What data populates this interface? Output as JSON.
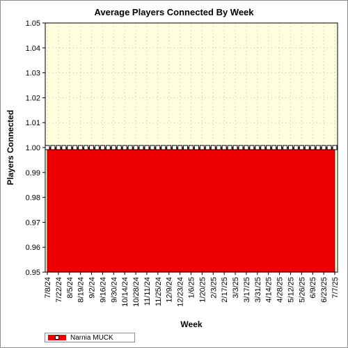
{
  "chart_data": {
    "type": "area",
    "title": "Average Players Connected By Week",
    "xlabel": "Week",
    "ylabel": "Players Connected",
    "ylim": [
      0.95,
      1.05
    ],
    "y_ticks": [
      "0.95",
      "0.96",
      "0.97",
      "0.98",
      "0.99",
      "1.00",
      "1.01",
      "1.02",
      "1.03",
      "1.04",
      "1.05"
    ],
    "x_tick_labels": [
      "7/8/24",
      "7/22/24",
      "8/5/24",
      "8/19/24",
      "9/2/24",
      "9/16/24",
      "9/30/24",
      "10/14/24",
      "10/28/24",
      "11/11/24",
      "11/25/24",
      "12/9/24",
      "12/23/24",
      "1/6/25",
      "1/20/25",
      "2/3/25",
      "2/17/25",
      "3/3/25",
      "3/17/25",
      "3/31/25",
      "4/14/25",
      "4/28/25",
      "5/12/25",
      "5/26/25",
      "6/9/25",
      "6/23/25",
      "7/7/25"
    ],
    "series": [
      {
        "name": "Narnia MUCK",
        "color": "#ee0000",
        "x": [
          "7/8/24",
          "7/15/24",
          "7/22/24",
          "7/29/24",
          "8/5/24",
          "8/12/24",
          "8/19/24",
          "8/26/24",
          "9/2/24",
          "9/9/24",
          "9/16/24",
          "9/23/24",
          "9/30/24",
          "10/7/24",
          "10/14/24",
          "10/21/24",
          "10/28/24",
          "11/4/24",
          "11/11/24",
          "11/18/24",
          "11/25/24",
          "12/2/24",
          "12/9/24",
          "12/16/24",
          "12/23/24",
          "12/30/24",
          "1/6/25",
          "1/13/25",
          "1/20/25",
          "1/27/25",
          "2/3/25",
          "2/10/25",
          "2/17/25",
          "2/24/25",
          "3/3/25",
          "3/10/25",
          "3/17/25",
          "3/24/25",
          "3/31/25",
          "4/7/25",
          "4/14/25",
          "4/21/25",
          "4/28/25",
          "5/5/25",
          "5/12/25",
          "5/19/25",
          "5/26/25",
          "6/2/25",
          "6/9/25",
          "6/16/25",
          "6/23/25",
          "6/30/25",
          "7/7/25"
        ],
        "values": [
          1,
          1,
          1,
          1,
          1,
          1,
          1,
          1,
          1,
          1,
          1,
          1,
          1,
          1,
          1,
          1,
          1,
          1,
          1,
          1,
          1,
          1,
          1,
          1,
          1,
          1,
          1,
          1,
          1,
          1,
          1,
          1,
          1,
          1,
          1,
          1,
          1,
          1,
          1,
          1,
          1,
          1,
          1,
          1,
          1,
          1,
          1,
          1,
          1,
          1,
          1,
          1,
          1
        ]
      }
    ],
    "plot_background": "#ffffe0",
    "grid": true,
    "legend": "bottom-left"
  }
}
